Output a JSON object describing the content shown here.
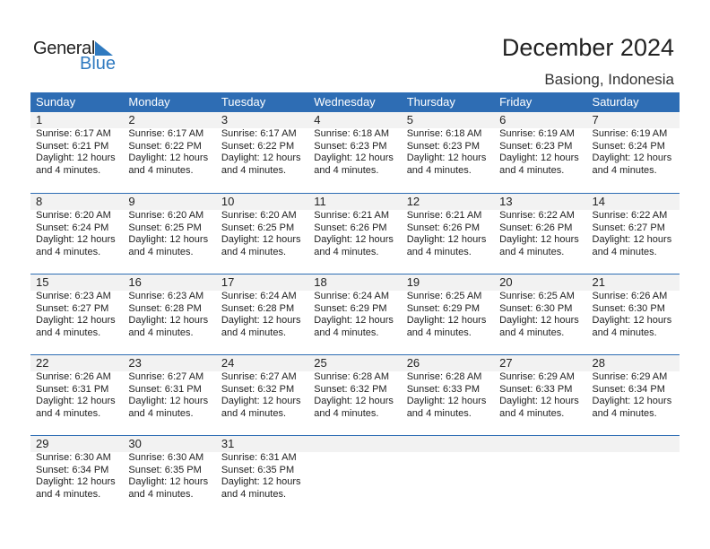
{
  "logo": {
    "word1": "General",
    "word2": "Blue",
    "accent": "#2f7ac0"
  },
  "title": "December 2024",
  "location": "Basiong, Indonesia",
  "header_color": "#2e6db4",
  "weekdays": [
    "Sunday",
    "Monday",
    "Tuesday",
    "Wednesday",
    "Thursday",
    "Friday",
    "Saturday"
  ],
  "days": [
    {
      "day": "1",
      "sunrise": "Sunrise: 6:17 AM",
      "sunset": "Sunset: 6:21 PM",
      "daylight1": "Daylight: 12 hours",
      "daylight2": "and 4 minutes."
    },
    {
      "day": "2",
      "sunrise": "Sunrise: 6:17 AM",
      "sunset": "Sunset: 6:22 PM",
      "daylight1": "Daylight: 12 hours",
      "daylight2": "and 4 minutes."
    },
    {
      "day": "3",
      "sunrise": "Sunrise: 6:17 AM",
      "sunset": "Sunset: 6:22 PM",
      "daylight1": "Daylight: 12 hours",
      "daylight2": "and 4 minutes."
    },
    {
      "day": "4",
      "sunrise": "Sunrise: 6:18 AM",
      "sunset": "Sunset: 6:23 PM",
      "daylight1": "Daylight: 12 hours",
      "daylight2": "and 4 minutes."
    },
    {
      "day": "5",
      "sunrise": "Sunrise: 6:18 AM",
      "sunset": "Sunset: 6:23 PM",
      "daylight1": "Daylight: 12 hours",
      "daylight2": "and 4 minutes."
    },
    {
      "day": "6",
      "sunrise": "Sunrise: 6:19 AM",
      "sunset": "Sunset: 6:23 PM",
      "daylight1": "Daylight: 12 hours",
      "daylight2": "and 4 minutes."
    },
    {
      "day": "7",
      "sunrise": "Sunrise: 6:19 AM",
      "sunset": "Sunset: 6:24 PM",
      "daylight1": "Daylight: 12 hours",
      "daylight2": "and 4 minutes."
    },
    {
      "day": "8",
      "sunrise": "Sunrise: 6:20 AM",
      "sunset": "Sunset: 6:24 PM",
      "daylight1": "Daylight: 12 hours",
      "daylight2": "and 4 minutes."
    },
    {
      "day": "9",
      "sunrise": "Sunrise: 6:20 AM",
      "sunset": "Sunset: 6:25 PM",
      "daylight1": "Daylight: 12 hours",
      "daylight2": "and 4 minutes."
    },
    {
      "day": "10",
      "sunrise": "Sunrise: 6:20 AM",
      "sunset": "Sunset: 6:25 PM",
      "daylight1": "Daylight: 12 hours",
      "daylight2": "and 4 minutes."
    },
    {
      "day": "11",
      "sunrise": "Sunrise: 6:21 AM",
      "sunset": "Sunset: 6:26 PM",
      "daylight1": "Daylight: 12 hours",
      "daylight2": "and 4 minutes."
    },
    {
      "day": "12",
      "sunrise": "Sunrise: 6:21 AM",
      "sunset": "Sunset: 6:26 PM",
      "daylight1": "Daylight: 12 hours",
      "daylight2": "and 4 minutes."
    },
    {
      "day": "13",
      "sunrise": "Sunrise: 6:22 AM",
      "sunset": "Sunset: 6:26 PM",
      "daylight1": "Daylight: 12 hours",
      "daylight2": "and 4 minutes."
    },
    {
      "day": "14",
      "sunrise": "Sunrise: 6:22 AM",
      "sunset": "Sunset: 6:27 PM",
      "daylight1": "Daylight: 12 hours",
      "daylight2": "and 4 minutes."
    },
    {
      "day": "15",
      "sunrise": "Sunrise: 6:23 AM",
      "sunset": "Sunset: 6:27 PM",
      "daylight1": "Daylight: 12 hours",
      "daylight2": "and 4 minutes."
    },
    {
      "day": "16",
      "sunrise": "Sunrise: 6:23 AM",
      "sunset": "Sunset: 6:28 PM",
      "daylight1": "Daylight: 12 hours",
      "daylight2": "and 4 minutes."
    },
    {
      "day": "17",
      "sunrise": "Sunrise: 6:24 AM",
      "sunset": "Sunset: 6:28 PM",
      "daylight1": "Daylight: 12 hours",
      "daylight2": "and 4 minutes."
    },
    {
      "day": "18",
      "sunrise": "Sunrise: 6:24 AM",
      "sunset": "Sunset: 6:29 PM",
      "daylight1": "Daylight: 12 hours",
      "daylight2": "and 4 minutes."
    },
    {
      "day": "19",
      "sunrise": "Sunrise: 6:25 AM",
      "sunset": "Sunset: 6:29 PM",
      "daylight1": "Daylight: 12 hours",
      "daylight2": "and 4 minutes."
    },
    {
      "day": "20",
      "sunrise": "Sunrise: 6:25 AM",
      "sunset": "Sunset: 6:30 PM",
      "daylight1": "Daylight: 12 hours",
      "daylight2": "and 4 minutes."
    },
    {
      "day": "21",
      "sunrise": "Sunrise: 6:26 AM",
      "sunset": "Sunset: 6:30 PM",
      "daylight1": "Daylight: 12 hours",
      "daylight2": "and 4 minutes."
    },
    {
      "day": "22",
      "sunrise": "Sunrise: 6:26 AM",
      "sunset": "Sunset: 6:31 PM",
      "daylight1": "Daylight: 12 hours",
      "daylight2": "and 4 minutes."
    },
    {
      "day": "23",
      "sunrise": "Sunrise: 6:27 AM",
      "sunset": "Sunset: 6:31 PM",
      "daylight1": "Daylight: 12 hours",
      "daylight2": "and 4 minutes."
    },
    {
      "day": "24",
      "sunrise": "Sunrise: 6:27 AM",
      "sunset": "Sunset: 6:32 PM",
      "daylight1": "Daylight: 12 hours",
      "daylight2": "and 4 minutes."
    },
    {
      "day": "25",
      "sunrise": "Sunrise: 6:28 AM",
      "sunset": "Sunset: 6:32 PM",
      "daylight1": "Daylight: 12 hours",
      "daylight2": "and 4 minutes."
    },
    {
      "day": "26",
      "sunrise": "Sunrise: 6:28 AM",
      "sunset": "Sunset: 6:33 PM",
      "daylight1": "Daylight: 12 hours",
      "daylight2": "and 4 minutes."
    },
    {
      "day": "27",
      "sunrise": "Sunrise: 6:29 AM",
      "sunset": "Sunset: 6:33 PM",
      "daylight1": "Daylight: 12 hours",
      "daylight2": "and 4 minutes."
    },
    {
      "day": "28",
      "sunrise": "Sunrise: 6:29 AM",
      "sunset": "Sunset: 6:34 PM",
      "daylight1": "Daylight: 12 hours",
      "daylight2": "and 4 minutes."
    },
    {
      "day": "29",
      "sunrise": "Sunrise: 6:30 AM",
      "sunset": "Sunset: 6:34 PM",
      "daylight1": "Daylight: 12 hours",
      "daylight2": "and 4 minutes."
    },
    {
      "day": "30",
      "sunrise": "Sunrise: 6:30 AM",
      "sunset": "Sunset: 6:35 PM",
      "daylight1": "Daylight: 12 hours",
      "daylight2": "and 4 minutes."
    },
    {
      "day": "31",
      "sunrise": "Sunrise: 6:31 AM",
      "sunset": "Sunset: 6:35 PM",
      "daylight1": "Daylight: 12 hours",
      "daylight2": "and 4 minutes."
    }
  ]
}
